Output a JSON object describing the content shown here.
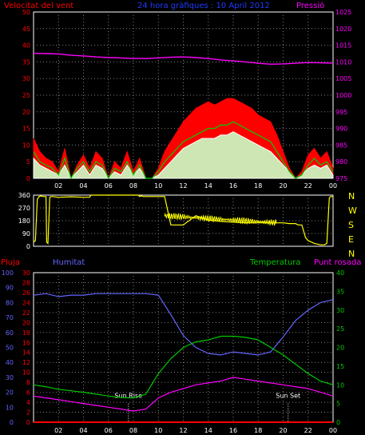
{
  "panel_top": {
    "left_label": "Velocitat del vent",
    "title": "24 hora gràfiques : 10 April 2012",
    "right_label": "Pressió",
    "colors": {
      "left": "#ff0000",
      "title": "#1e3cff",
      "right": "#ff00ff",
      "gust": "#ff0000",
      "wind": "#00d000",
      "avg": "#ffffff",
      "avg_fill": "#c8ffc8",
      "pressure": "#ff00ff"
    }
  },
  "panel_dir": {
    "compass": [
      "N",
      "W",
      "S",
      "E",
      "N"
    ],
    "color": "#ffff00"
  },
  "panel_bottom": {
    "label_rain": "Pluja",
    "label_hum": "Humitat",
    "label_temp": "Temperatura",
    "label_dew": "Punt rosada",
    "sunrise": "Sun Rise",
    "sunset": "Sun Set",
    "colors": {
      "rain": "#ff0000",
      "hum": "#6464ff",
      "temp": "#00c800",
      "dew": "#ff00ff"
    }
  },
  "chart_data": [
    {
      "type": "line",
      "x_ticks": [
        "02",
        "04",
        "06",
        "08",
        "10",
        "12",
        "14",
        "16",
        "18",
        "20",
        "22",
        "00"
      ],
      "x_start_hour": 0,
      "x_end_hour": 24,
      "y_left": {
        "ticks": [
          "0",
          "5",
          "10",
          "15",
          "20",
          "25",
          "30",
          "35",
          "40",
          "45",
          "50"
        ],
        "ylim": [
          0,
          50
        ]
      },
      "y_right": {
        "ticks": [
          "975",
          "980",
          "985",
          "990",
          "995",
          "1000",
          "1005",
          "1010",
          "1015",
          "1020",
          "1025"
        ],
        "ylim": [
          975,
          1025
        ]
      },
      "series": [
        {
          "axis": "right",
          "x": [
            0,
            1,
            2,
            3,
            4,
            5,
            6,
            7,
            8,
            9,
            10,
            11,
            12,
            13,
            14,
            15,
            16,
            17,
            18,
            19,
            20,
            21,
            22,
            23,
            24
          ],
          "values": [
            1012.6,
            1012.5,
            1012.4,
            1012.0,
            1011.8,
            1011.5,
            1011.3,
            1011.2,
            1011.0,
            1011.0,
            1011.2,
            1011.4,
            1011.5,
            1011.3,
            1011.0,
            1010.6,
            1010.3,
            1010.0,
            1009.6,
            1009.3,
            1009.4,
            1009.6,
            1009.8,
            1009.7,
            1009.6
          ]
        },
        {
          "axis": "left",
          "x": [
            0,
            0.5,
            1,
            1.5,
            2,
            2.5,
            3,
            3.5,
            4,
            4.5,
            5,
            5.5,
            6,
            6.5,
            7,
            7.5,
            8,
            8.5,
            9,
            9.5,
            10,
            10.5,
            11,
            11.5,
            12,
            12.5,
            13,
            13.5,
            14,
            14.5,
            15,
            15.5,
            16,
            16.5,
            17,
            17.5,
            18,
            18.5,
            19,
            19.5,
            20,
            20.5,
            21,
            21.5,
            22,
            22.5,
            23,
            23.5,
            24
          ],
          "values": [
            12,
            8,
            6,
            5,
            2,
            9,
            0,
            4,
            7,
            3,
            8,
            6,
            0,
            5,
            3,
            8,
            2,
            6,
            0,
            0,
            3,
            8,
            11,
            14,
            17,
            19,
            21,
            22,
            23,
            22,
            23,
            24,
            24,
            23,
            22,
            21,
            19,
            18,
            17,
            13,
            8,
            3,
            0,
            2,
            7,
            9,
            6,
            8,
            3
          ]
        },
        {
          "axis": "left",
          "x": [
            0,
            0.5,
            1,
            1.5,
            2,
            2.5,
            3,
            3.5,
            4,
            4.5,
            5,
            5.5,
            6,
            6.5,
            7,
            7.5,
            8,
            8.5,
            9,
            9.5,
            10,
            10.5,
            11,
            11.5,
            12,
            12.5,
            13,
            13.5,
            14,
            14.5,
            15,
            15.5,
            16,
            16.5,
            17,
            17.5,
            18,
            18.5,
            19,
            19.5,
            20,
            20.5,
            21,
            21.5,
            22,
            22.5,
            23,
            23.5,
            24
          ],
          "values": [
            8,
            5,
            4,
            3,
            1,
            6,
            0,
            3,
            5,
            2,
            5,
            4,
            0,
            3,
            2,
            5,
            1,
            4,
            0,
            0,
            2,
            5,
            7,
            9,
            11,
            12,
            13,
            14,
            15,
            15,
            16,
            16,
            17,
            16,
            15,
            14,
            13,
            12,
            11,
            8,
            5,
            2,
            0,
            1,
            4,
            6,
            4,
            5,
            2
          ]
        },
        {
          "axis": "left",
          "x": [
            0,
            0.5,
            1,
            1.5,
            2,
            2.5,
            3,
            3.5,
            4,
            4.5,
            5,
            5.5,
            6,
            6.5,
            7,
            7.5,
            8,
            8.5,
            9,
            9.5,
            10,
            10.5,
            11,
            11.5,
            12,
            12.5,
            13,
            13.5,
            14,
            14.5,
            15,
            15.5,
            16,
            16.5,
            17,
            17.5,
            18,
            18.5,
            19,
            19.5,
            20,
            20.5,
            21,
            21.5,
            22,
            22.5,
            23,
            23.5,
            24
          ],
          "values": [
            6,
            4,
            3,
            2,
            1,
            4,
            0,
            2,
            4,
            1,
            4,
            3,
            0,
            2,
            1,
            4,
            1,
            3,
            0,
            0,
            1,
            3,
            5,
            7,
            9,
            10,
            11,
            12,
            12,
            12,
            13,
            13,
            14,
            13,
            12,
            11,
            10,
            9,
            8,
            6,
            4,
            2,
            0,
            1,
            3,
            4,
            3,
            4,
            1
          ]
        }
      ]
    },
    {
      "type": "line",
      "x_ticks": [],
      "x_start_hour": 0,
      "x_end_hour": 24,
      "y_left": {
        "ticks": [
          "0",
          "90",
          "180",
          "270",
          "360"
        ],
        "ylim": [
          0,
          360
        ]
      },
      "series": [
        {
          "axis": "left",
          "x": [
            0,
            0.15,
            0.3,
            0.45,
            0.6,
            0.75,
            1.0,
            1.05,
            1.15,
            1.3,
            1.4,
            1.5,
            2.0,
            3.0,
            4.0,
            4.5,
            4.6,
            5.0,
            6.0,
            7.0,
            8.0,
            8.4,
            8.5,
            8.6,
            8.8,
            9.0,
            9.5,
            10.0,
            10.5,
            11.0,
            11.5,
            12.0,
            13.0,
            14.0,
            15.0,
            16.0,
            17.0,
            18.0,
            19.0,
            20.0,
            20.5,
            21.0,
            21.2,
            21.5,
            21.8,
            22.0,
            22.5,
            23.0,
            23.3,
            23.5,
            23.7,
            23.8,
            24.0
          ],
          "values": [
            30,
            40,
            330,
            350,
            355,
            350,
            350,
            30,
            20,
            345,
            350,
            350,
            345,
            348,
            345,
            345,
            360,
            360,
            360,
            360,
            360,
            360,
            350,
            355,
            350,
            350,
            350,
            350,
            350,
            150,
            150,
            150,
            215,
            185,
            175,
            170,
            165,
            165,
            165,
            165,
            160,
            160,
            150,
            150,
            60,
            40,
            20,
            10,
            10,
            20,
            340,
            350,
            350
          ]
        }
      ]
    },
    {
      "type": "line",
      "x_ticks": [
        "02",
        "04",
        "06",
        "08",
        "10",
        "12",
        "14",
        "16",
        "18",
        "20",
        "22",
        "00"
      ],
      "x_start_hour": 0,
      "x_end_hour": 24,
      "y_hum": {
        "ticks": [
          "0",
          "10",
          "20",
          "30",
          "40",
          "50",
          "60",
          "70",
          "80",
          "90",
          "100"
        ],
        "ylim": [
          0,
          100
        ]
      },
      "y_rain": {
        "ticks": [
          "0",
          "2",
          "4",
          "6",
          "8",
          "10",
          "12",
          "14",
          "16",
          "18",
          "20",
          "22",
          "24",
          "26",
          "28",
          "30"
        ],
        "ylim": [
          0,
          30
        ]
      },
      "y_temp": {
        "ticks": [
          "0",
          "5",
          "10",
          "15",
          "20",
          "25",
          "30",
          "35",
          "40"
        ],
        "ylim": [
          0,
          40
        ]
      },
      "series": [
        {
          "axis": "rain",
          "x": [
            0,
            24
          ],
          "values": [
            0,
            0
          ]
        },
        {
          "axis": "hum",
          "x": [
            0,
            1,
            2,
            3,
            4,
            5,
            6,
            7,
            8,
            9,
            10,
            11,
            12,
            13,
            14,
            15,
            16,
            17,
            18,
            19,
            20,
            21,
            22,
            23,
            24
          ],
          "values": [
            85,
            86,
            84,
            85,
            85,
            86,
            86,
            86,
            86,
            86,
            85,
            72,
            58,
            50,
            46,
            45,
            47,
            46,
            45,
            47,
            57,
            68,
            75,
            80,
            82
          ]
        },
        {
          "axis": "temp",
          "x": [
            0,
            1,
            2,
            3,
            4,
            5,
            6,
            7,
            8,
            9,
            10,
            11,
            12,
            13,
            14,
            15,
            16,
            17,
            18,
            19,
            20,
            21,
            22,
            23,
            24
          ],
          "values": [
            10,
            9.5,
            8.8,
            8.4,
            8.0,
            7.5,
            7.0,
            6.6,
            6.5,
            7.5,
            13,
            17,
            20,
            21.5,
            22,
            23,
            23,
            22.7,
            22,
            20,
            18,
            15.5,
            13,
            11,
            10
          ]
        },
        {
          "axis": "temp",
          "x": [
            0,
            1,
            2,
            3,
            4,
            5,
            6,
            7,
            8,
            9,
            10,
            11,
            12,
            13,
            14,
            15,
            16,
            17,
            18,
            19,
            20,
            21,
            22,
            23,
            24
          ],
          "values": [
            7,
            6.5,
            6,
            5.5,
            5,
            4.5,
            4,
            3.5,
            3,
            3.5,
            6.5,
            8,
            9,
            10,
            10.5,
            11,
            12,
            11.5,
            11,
            10.5,
            10,
            9.5,
            9,
            8,
            7
          ]
        }
      ]
    }
  ]
}
